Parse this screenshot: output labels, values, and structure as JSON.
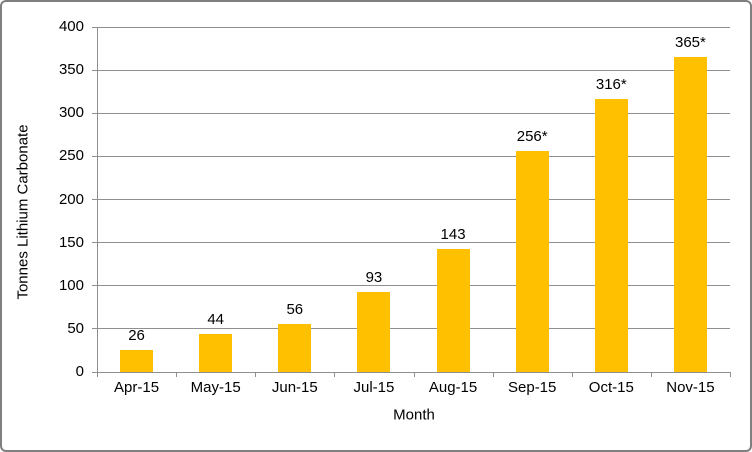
{
  "chart_data": {
    "type": "bar",
    "title": "",
    "categories": [
      "Apr-15",
      "May-15",
      "Jun-15",
      "Jul-15",
      "Aug-15",
      "Sep-15",
      "Oct-15",
      "Nov-15"
    ],
    "values": [
      26,
      44,
      56,
      93,
      143,
      256,
      316,
      365
    ],
    "bar_labels": [
      "26",
      "44",
      "56",
      "93",
      "143",
      "256*",
      "316*",
      "365*"
    ],
    "xlabel": "Month",
    "ylabel": "Tonnes Lithium Carbonate",
    "ylim": [
      0,
      400
    ],
    "yticks": [
      0,
      50,
      100,
      150,
      200,
      250,
      300,
      350,
      400
    ],
    "grid": "horizontal",
    "legend_position": "none",
    "bar_color": "#FFC000",
    "grid_color": "#8f8f8f",
    "axis_color": "#8f8f8f",
    "text_color": "#000000",
    "frame_border_color": "#7f7f7f",
    "background_color": "#ffffff"
  }
}
